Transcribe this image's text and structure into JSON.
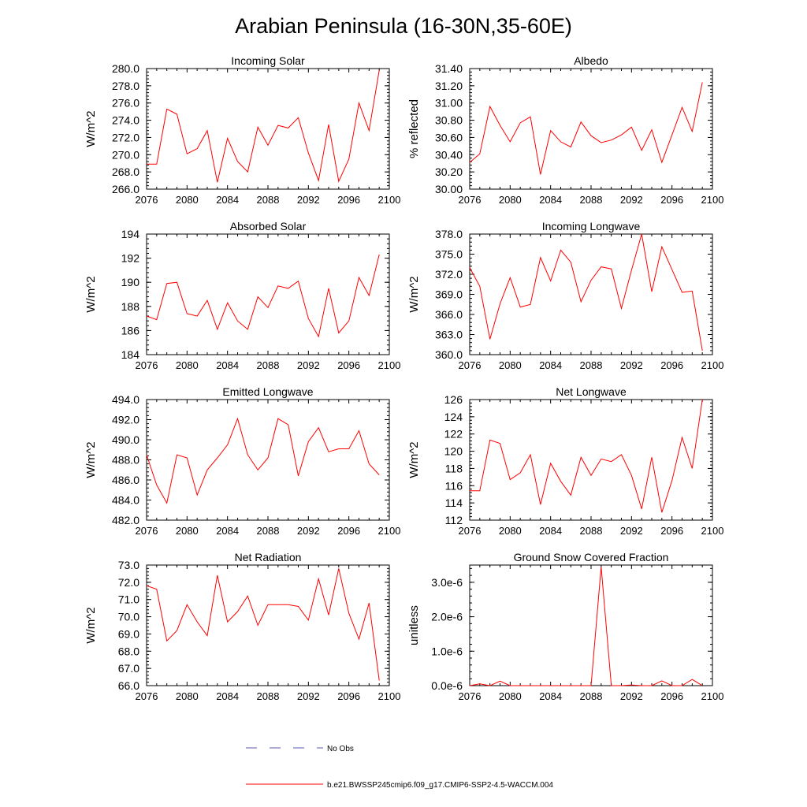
{
  "figure": {
    "title": "Arabian Peninsula (16-30N,35-60E)",
    "line_color": "#ff0000",
    "obs_color": "#5a5ab4"
  },
  "legend": [
    {
      "label": "No Obs",
      "style": "dashed",
      "color": "#5a5ab4"
    },
    {
      "label": "b.e21.BWSSP245cmip6.f09_g17.CMIP6-SSP2-4.5-WACCM.004",
      "style": "solid",
      "color": "#ff0000"
    }
  ],
  "chart_data": [
    {
      "type": "line",
      "title": "Incoming Solar",
      "ylabel": "W/m^2",
      "xlim": [
        2076,
        2100
      ],
      "xticks": [
        "2076",
        "2080",
        "2084",
        "2088",
        "2092",
        "2096",
        "2100"
      ],
      "ylim": [
        266.0,
        280.0
      ],
      "yticks": [
        "266.0",
        "268.0",
        "270.0",
        "272.0",
        "274.0",
        "276.0",
        "278.0",
        "280.0"
      ],
      "x": [
        2076,
        2077,
        2078,
        2079,
        2080,
        2081,
        2082,
        2083,
        2084,
        2085,
        2086,
        2087,
        2088,
        2089,
        2090,
        2091,
        2092,
        2093,
        2094,
        2095,
        2096,
        2097,
        2098,
        2099
      ],
      "series": [
        {
          "values": [
            268.9,
            268.9,
            275.3,
            274.7,
            270.1,
            270.7,
            272.8,
            266.8,
            271.9,
            269.2,
            268.0,
            273.2,
            271.1,
            273.4,
            273.1,
            274.3,
            270.2,
            267.0,
            273.5,
            266.9,
            269.5,
            276.0,
            272.8,
            279.8
          ]
        }
      ]
    },
    {
      "type": "line",
      "title": "Albedo",
      "ylabel": "% reflected",
      "xlim": [
        2076,
        2100
      ],
      "xticks": [
        "2076",
        "2080",
        "2084",
        "2088",
        "2092",
        "2096",
        "2100"
      ],
      "ylim": [
        30.0,
        31.4
      ],
      "yticks": [
        "30.00",
        "30.20",
        "30.40",
        "30.60",
        "30.80",
        "31.00",
        "31.20",
        "31.40"
      ],
      "x": [
        2076,
        2077,
        2078,
        2079,
        2080,
        2081,
        2082,
        2083,
        2084,
        2085,
        2086,
        2087,
        2088,
        2089,
        2090,
        2091,
        2092,
        2093,
        2094,
        2095,
        2096,
        2097,
        2098,
        2099
      ],
      "series": [
        {
          "values": [
            30.31,
            30.41,
            30.96,
            30.74,
            30.55,
            30.77,
            30.84,
            30.17,
            30.68,
            30.55,
            30.49,
            30.78,
            30.62,
            30.54,
            30.57,
            30.63,
            30.72,
            30.45,
            30.69,
            30.31,
            30.63,
            30.95,
            30.67,
            31.24
          ]
        }
      ]
    },
    {
      "type": "line",
      "title": "Absorbed Solar",
      "ylabel": "W/m^2",
      "xlim": [
        2076,
        2100
      ],
      "xticks": [
        "2076",
        "2080",
        "2084",
        "2088",
        "2092",
        "2096",
        "2100"
      ],
      "ylim": [
        184,
        194
      ],
      "yticks": [
        "184",
        "186",
        "188",
        "190",
        "192",
        "194"
      ],
      "x": [
        2076,
        2077,
        2078,
        2079,
        2080,
        2081,
        2082,
        2083,
        2084,
        2085,
        2086,
        2087,
        2088,
        2089,
        2090,
        2091,
        2092,
        2093,
        2094,
        2095,
        2096,
        2097,
        2098,
        2099
      ],
      "series": [
        {
          "values": [
            187.2,
            186.9,
            189.9,
            190.0,
            187.4,
            187.2,
            188.5,
            186.1,
            188.3,
            186.8,
            186.1,
            188.8,
            187.9,
            189.7,
            189.5,
            190.1,
            187.0,
            185.5,
            189.5,
            185.8,
            186.8,
            190.4,
            188.9,
            192.3
          ]
        }
      ]
    },
    {
      "type": "line",
      "title": "Incoming Longwave",
      "ylabel": "W/m^2",
      "xlim": [
        2076,
        2100
      ],
      "xticks": [
        "2076",
        "2080",
        "2084",
        "2088",
        "2092",
        "2096",
        "2100"
      ],
      "ylim": [
        360.0,
        378.0
      ],
      "yticks": [
        "360.0",
        "363.0",
        "366.0",
        "369.0",
        "372.0",
        "375.0",
        "378.0"
      ],
      "x": [
        2076,
        2077,
        2078,
        2079,
        2080,
        2081,
        2082,
        2083,
        2084,
        2085,
        2086,
        2087,
        2088,
        2089,
        2090,
        2091,
        2092,
        2093,
        2094,
        2095,
        2096,
        2097,
        2098,
        2099
      ],
      "series": [
        {
          "values": [
            373.0,
            370.2,
            362.3,
            367.6,
            371.5,
            367.1,
            367.5,
            374.5,
            371.0,
            375.6,
            373.8,
            367.9,
            371.1,
            373.1,
            372.8,
            366.9,
            372.6,
            378.0,
            369.4,
            376.1,
            372.7,
            369.3,
            369.5,
            360.6
          ]
        }
      ]
    },
    {
      "type": "line",
      "title": "Emitted Longwave",
      "ylabel": "W/m^2",
      "xlim": [
        2076,
        2100
      ],
      "xticks": [
        "2076",
        "2080",
        "2084",
        "2088",
        "2092",
        "2096",
        "2100"
      ],
      "ylim": [
        482.0,
        494.0
      ],
      "yticks": [
        "482.0",
        "484.0",
        "486.0",
        "488.0",
        "490.0",
        "492.0",
        "494.0"
      ],
      "x": [
        2076,
        2077,
        2078,
        2079,
        2080,
        2081,
        2082,
        2083,
        2084,
        2085,
        2086,
        2087,
        2088,
        2089,
        2090,
        2091,
        2092,
        2093,
        2094,
        2095,
        2096,
        2097,
        2098,
        2099
      ],
      "series": [
        {
          "values": [
            488.5,
            485.5,
            483.7,
            488.5,
            488.2,
            484.5,
            487.0,
            488.2,
            489.5,
            492.1,
            488.5,
            487.0,
            488.2,
            492.1,
            491.5,
            486.4,
            489.8,
            491.2,
            488.8,
            489.1,
            489.1,
            490.9,
            487.6,
            486.5
          ]
        }
      ]
    },
    {
      "type": "line",
      "title": "Net Longwave",
      "ylabel": "W/m^2",
      "xlim": [
        2076,
        2100
      ],
      "xticks": [
        "2076",
        "2080",
        "2084",
        "2088",
        "2092",
        "2096",
        "2100"
      ],
      "ylim": [
        112,
        126
      ],
      "yticks": [
        "112",
        "114",
        "116",
        "118",
        "120",
        "122",
        "124",
        "126"
      ],
      "x": [
        2076,
        2077,
        2078,
        2079,
        2080,
        2081,
        2082,
        2083,
        2084,
        2085,
        2086,
        2087,
        2088,
        2089,
        2090,
        2091,
        2092,
        2093,
        2094,
        2095,
        2096,
        2097,
        2098,
        2099
      ],
      "series": [
        {
          "values": [
            115.4,
            115.4,
            121.3,
            120.9,
            116.7,
            117.5,
            119.6,
            113.8,
            118.6,
            116.5,
            114.9,
            119.3,
            117.2,
            119.1,
            118.8,
            119.6,
            117.2,
            113.3,
            119.3,
            112.9,
            116.6,
            121.6,
            118.0,
            126.0
          ]
        }
      ]
    },
    {
      "type": "line",
      "title": "Net Radiation",
      "ylabel": "W/m^2",
      "xlim": [
        2076,
        2100
      ],
      "xticks": [
        "2076",
        "2080",
        "2084",
        "2088",
        "2092",
        "2096",
        "2100"
      ],
      "ylim": [
        66.0,
        73.0
      ],
      "yticks": [
        "66.0",
        "67.0",
        "68.0",
        "69.0",
        "70.0",
        "71.0",
        "72.0",
        "73.0"
      ],
      "x": [
        2076,
        2077,
        2078,
        2079,
        2080,
        2081,
        2082,
        2083,
        2084,
        2085,
        2086,
        2087,
        2088,
        2089,
        2090,
        2091,
        2092,
        2093,
        2094,
        2095,
        2096,
        2097,
        2098,
        2099
      ],
      "series": [
        {
          "values": [
            71.8,
            71.6,
            68.6,
            69.2,
            70.7,
            69.7,
            68.9,
            72.4,
            69.7,
            70.3,
            71.2,
            69.5,
            70.7,
            70.7,
            70.7,
            70.6,
            69.8,
            72.2,
            70.1,
            72.8,
            70.2,
            68.7,
            70.8,
            66.3
          ]
        }
      ]
    },
    {
      "type": "line",
      "title": "Ground Snow Covered Fraction",
      "ylabel": "unitless",
      "xlim": [
        2076,
        2100
      ],
      "xticks": [
        "2076",
        "2080",
        "2084",
        "2088",
        "2092",
        "2096",
        "2100"
      ],
      "ylim": [
        0.0,
        3.5e-06
      ],
      "yticks": [
        "0.0e-6",
        "1.0e-6",
        "2.0e-6",
        "3.0e-6"
      ],
      "ytick_values": [
        0.0,
        1e-06,
        2e-06,
        3e-06
      ],
      "x": [
        2076,
        2077,
        2078,
        2079,
        2080,
        2081,
        2082,
        2083,
        2084,
        2085,
        2086,
        2087,
        2088,
        2089,
        2090,
        2091,
        2092,
        2093,
        2094,
        2095,
        2096,
        2097,
        2098,
        2099
      ],
      "series": [
        {
          "values": [
            0.0,
            5e-08,
            0.0,
            1.3e-07,
            0.0,
            0.0,
            0.0,
            0.0,
            0.0,
            0.0,
            0.0,
            0.0,
            0.0,
            3.45e-06,
            0.0,
            0.0,
            2e-08,
            0.0,
            0.0,
            1.4e-07,
            0.0,
            0.0,
            1.8e-07,
            0.0
          ]
        }
      ]
    }
  ]
}
